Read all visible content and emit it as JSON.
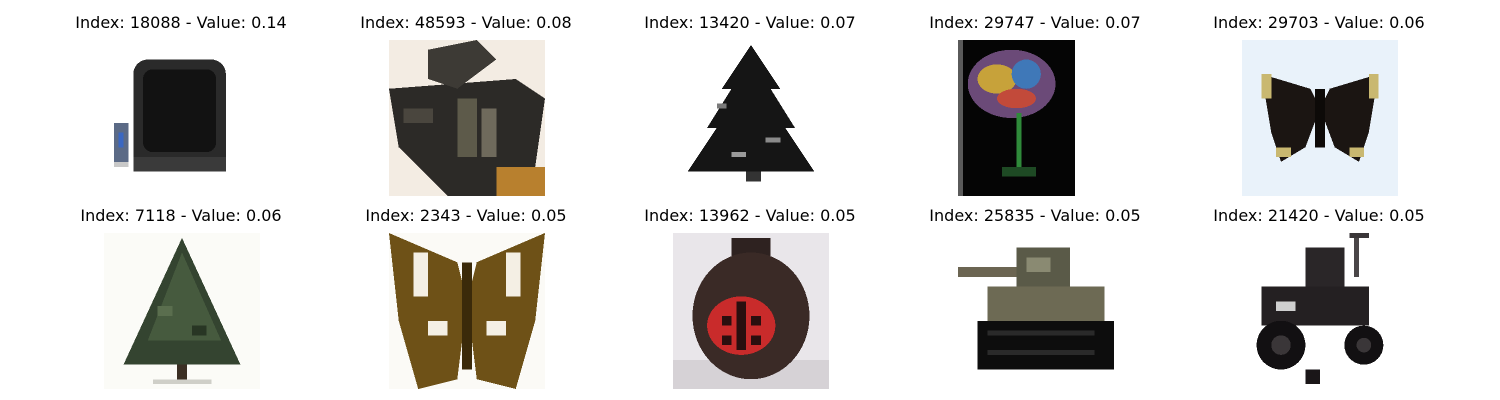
{
  "figure": {
    "panels": [
      {
        "title": "Index: 18088 - Value: 0.14",
        "index": 18088,
        "value": 0.14,
        "depicts": "television"
      },
      {
        "title": "Index: 48593 - Value: 0.08",
        "index": 48593,
        "value": 0.08,
        "depicts": "tank"
      },
      {
        "title": "Index: 13420 - Value: 0.07",
        "index": 13420,
        "value": 0.07,
        "depicts": "tree"
      },
      {
        "title": "Index: 29747 - Value: 0.07",
        "index": 29747,
        "value": 0.07,
        "depicts": "flower"
      },
      {
        "title": "Index: 29703 - Value: 0.06",
        "index": 29703,
        "value": 0.06,
        "depicts": "butterfly"
      },
      {
        "title": "Index: 7118 - Value: 0.06",
        "index": 7118,
        "value": 0.06,
        "depicts": "tree"
      },
      {
        "title": "Index: 2343 - Value: 0.05",
        "index": 2343,
        "value": 0.05,
        "depicts": "butterfly"
      },
      {
        "title": "Index: 13962 - Value: 0.05",
        "index": 13962,
        "value": 0.05,
        "depicts": "ladybug-jar"
      },
      {
        "title": "Index: 25835 - Value: 0.05",
        "index": 25835,
        "value": 0.05,
        "depicts": "tank"
      },
      {
        "title": "Index: 21420 - Value: 0.05",
        "index": 21420,
        "value": 0.05,
        "depicts": "lawn-mower"
      }
    ]
  }
}
